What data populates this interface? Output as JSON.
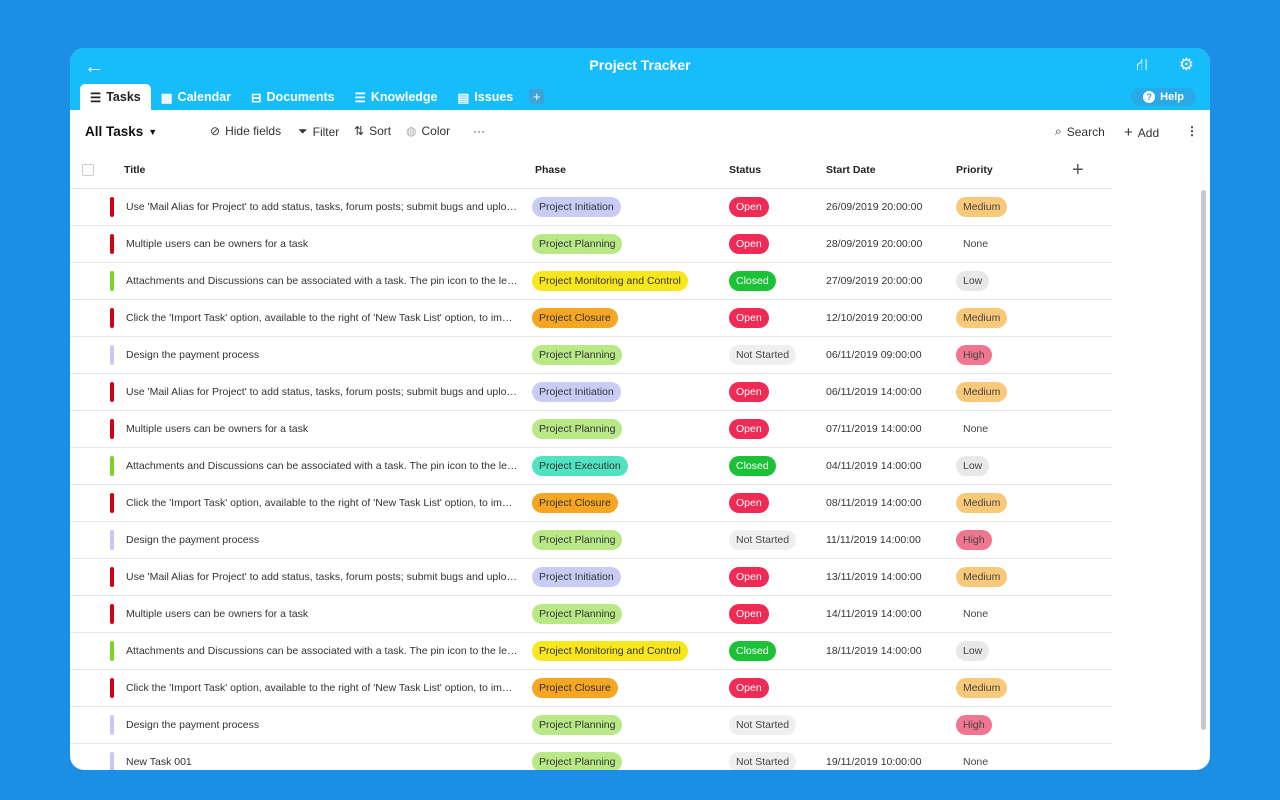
{
  "header": {
    "title": "Project Tracker",
    "help": "Help"
  },
  "tabs": [
    {
      "label": "Tasks",
      "icon": "☰"
    },
    {
      "label": "Calendar",
      "icon": "▦"
    },
    {
      "label": "Documents",
      "icon": "⊟"
    },
    {
      "label": "Knowledge",
      "icon": "☰"
    },
    {
      "label": "Issues",
      "icon": "▤"
    }
  ],
  "toolbar": {
    "view": "All Tasks",
    "hide_fields": "Hide fields",
    "filter": "Filter",
    "sort": "Sort",
    "color": "Color",
    "more": "···",
    "search": "Search",
    "add": "Add"
  },
  "columns": [
    "Title",
    "Phase",
    "Status",
    "Start Date",
    "Priority"
  ],
  "colors": {
    "bar": {
      "red": "#d0021b",
      "green": "#7ed321",
      "lavender": "#c5c9f5"
    },
    "phase": {
      "Project Initiation": "#c9cdf6",
      "Project Planning": "#b8e986",
      "Project Monitoring and Control": "#f8e71c",
      "Project Closure": "#f5a623",
      "Project Execution": "#50e3c2"
    },
    "status": {
      "Open": [
        "#ee2a55",
        "#fff"
      ],
      "Closed": [
        "#1bc238",
        "#fff"
      ],
      "Not Started": [
        "#efefef",
        "#444"
      ]
    },
    "priority": {
      "Medium": "#f9c97a",
      "High": "#f0758f",
      "Low": "#e8e8e8",
      "None": "transparent"
    }
  },
  "rows": [
    {
      "bar": "red",
      "title": "Use 'Mail Alias for Project' to add status, tasks, forum posts; submit bugs and upload documents",
      "phase": "Project Initiation",
      "status": "Open",
      "start": "26/09/2019 20:00:00",
      "priority": "Medium"
    },
    {
      "bar": "red",
      "title": "Multiple users can be owners for a task",
      "phase": "Project Planning",
      "status": "Open",
      "start": "28/09/2019 20:00:00",
      "priority": "None"
    },
    {
      "bar": "green",
      "title": "Attachments and Discussions can be associated with a task. The pin icon to the left of the task",
      "phase": "Project Monitoring and Control",
      "status": "Closed",
      "start": "27/09/2019 20:00:00",
      "priority": "Low"
    },
    {
      "bar": "red",
      "title": "Click the 'Import Task' option, available to the right of 'New Task List' option, to import tasks",
      "phase": "Project Closure",
      "status": "Open",
      "start": "12/10/2019 20:00:00",
      "priority": "Medium"
    },
    {
      "bar": "lavender",
      "title": "Design the payment process",
      "phase": "Project Planning",
      "status": "Not Started",
      "start": "06/11/2019 09:00:00",
      "priority": "High"
    },
    {
      "bar": "red",
      "title": "Use 'Mail Alias for Project' to add status, tasks, forum posts; submit bugs and upload documents",
      "phase": "Project Initiation",
      "status": "Open",
      "start": "06/11/2019 14:00:00",
      "priority": "Medium"
    },
    {
      "bar": "red",
      "title": "Multiple users can be owners for a task",
      "phase": "Project Planning",
      "status": "Open",
      "start": "07/11/2019 14:00:00",
      "priority": "None"
    },
    {
      "bar": "green",
      "title": "Attachments and Discussions can be associated with a task. The pin icon to the left of the task",
      "phase": "Project Execution",
      "status": "Closed",
      "start": "04/11/2019 14:00:00",
      "priority": "Low"
    },
    {
      "bar": "red",
      "title": "Click the 'Import Task' option, available to the right of 'New Task List' option, to import tasks",
      "phase": "Project Closure",
      "status": "Open",
      "start": "08/11/2019 14:00:00",
      "priority": "Medium"
    },
    {
      "bar": "lavender",
      "title": "Design the payment process",
      "phase": "Project Planning",
      "status": "Not Started",
      "start": "11/11/2019 14:00:00",
      "priority": "High"
    },
    {
      "bar": "red",
      "title": "Use 'Mail Alias for Project' to add status, tasks, forum posts; submit bugs and upload documents",
      "phase": "Project Initiation",
      "status": "Open",
      "start": "13/11/2019 14:00:00",
      "priority": "Medium"
    },
    {
      "bar": "red",
      "title": "Multiple users can be owners for a task",
      "phase": "Project Planning",
      "status": "Open",
      "start": "14/11/2019 14:00:00",
      "priority": "None"
    },
    {
      "bar": "green",
      "title": "Attachments and Discussions can be associated with a task. The pin icon to the left of the task",
      "phase": "Project Monitoring and Control",
      "status": "Closed",
      "start": "18/11/2019 14:00:00",
      "priority": "Low"
    },
    {
      "bar": "red",
      "title": "Click the 'Import Task' option, available to the right of 'New Task List' option, to import tasks",
      "phase": "Project Closure",
      "status": "Open",
      "start": "",
      "priority": "Medium"
    },
    {
      "bar": "lavender",
      "title": "Design the payment process",
      "phase": "Project Planning",
      "status": "Not Started",
      "start": "",
      "priority": "High"
    },
    {
      "bar": "lavender",
      "title": "New Task 001",
      "phase": "Project Planning",
      "status": "Not Started",
      "start": "19/11/2019 10:00:00",
      "priority": "None"
    }
  ]
}
